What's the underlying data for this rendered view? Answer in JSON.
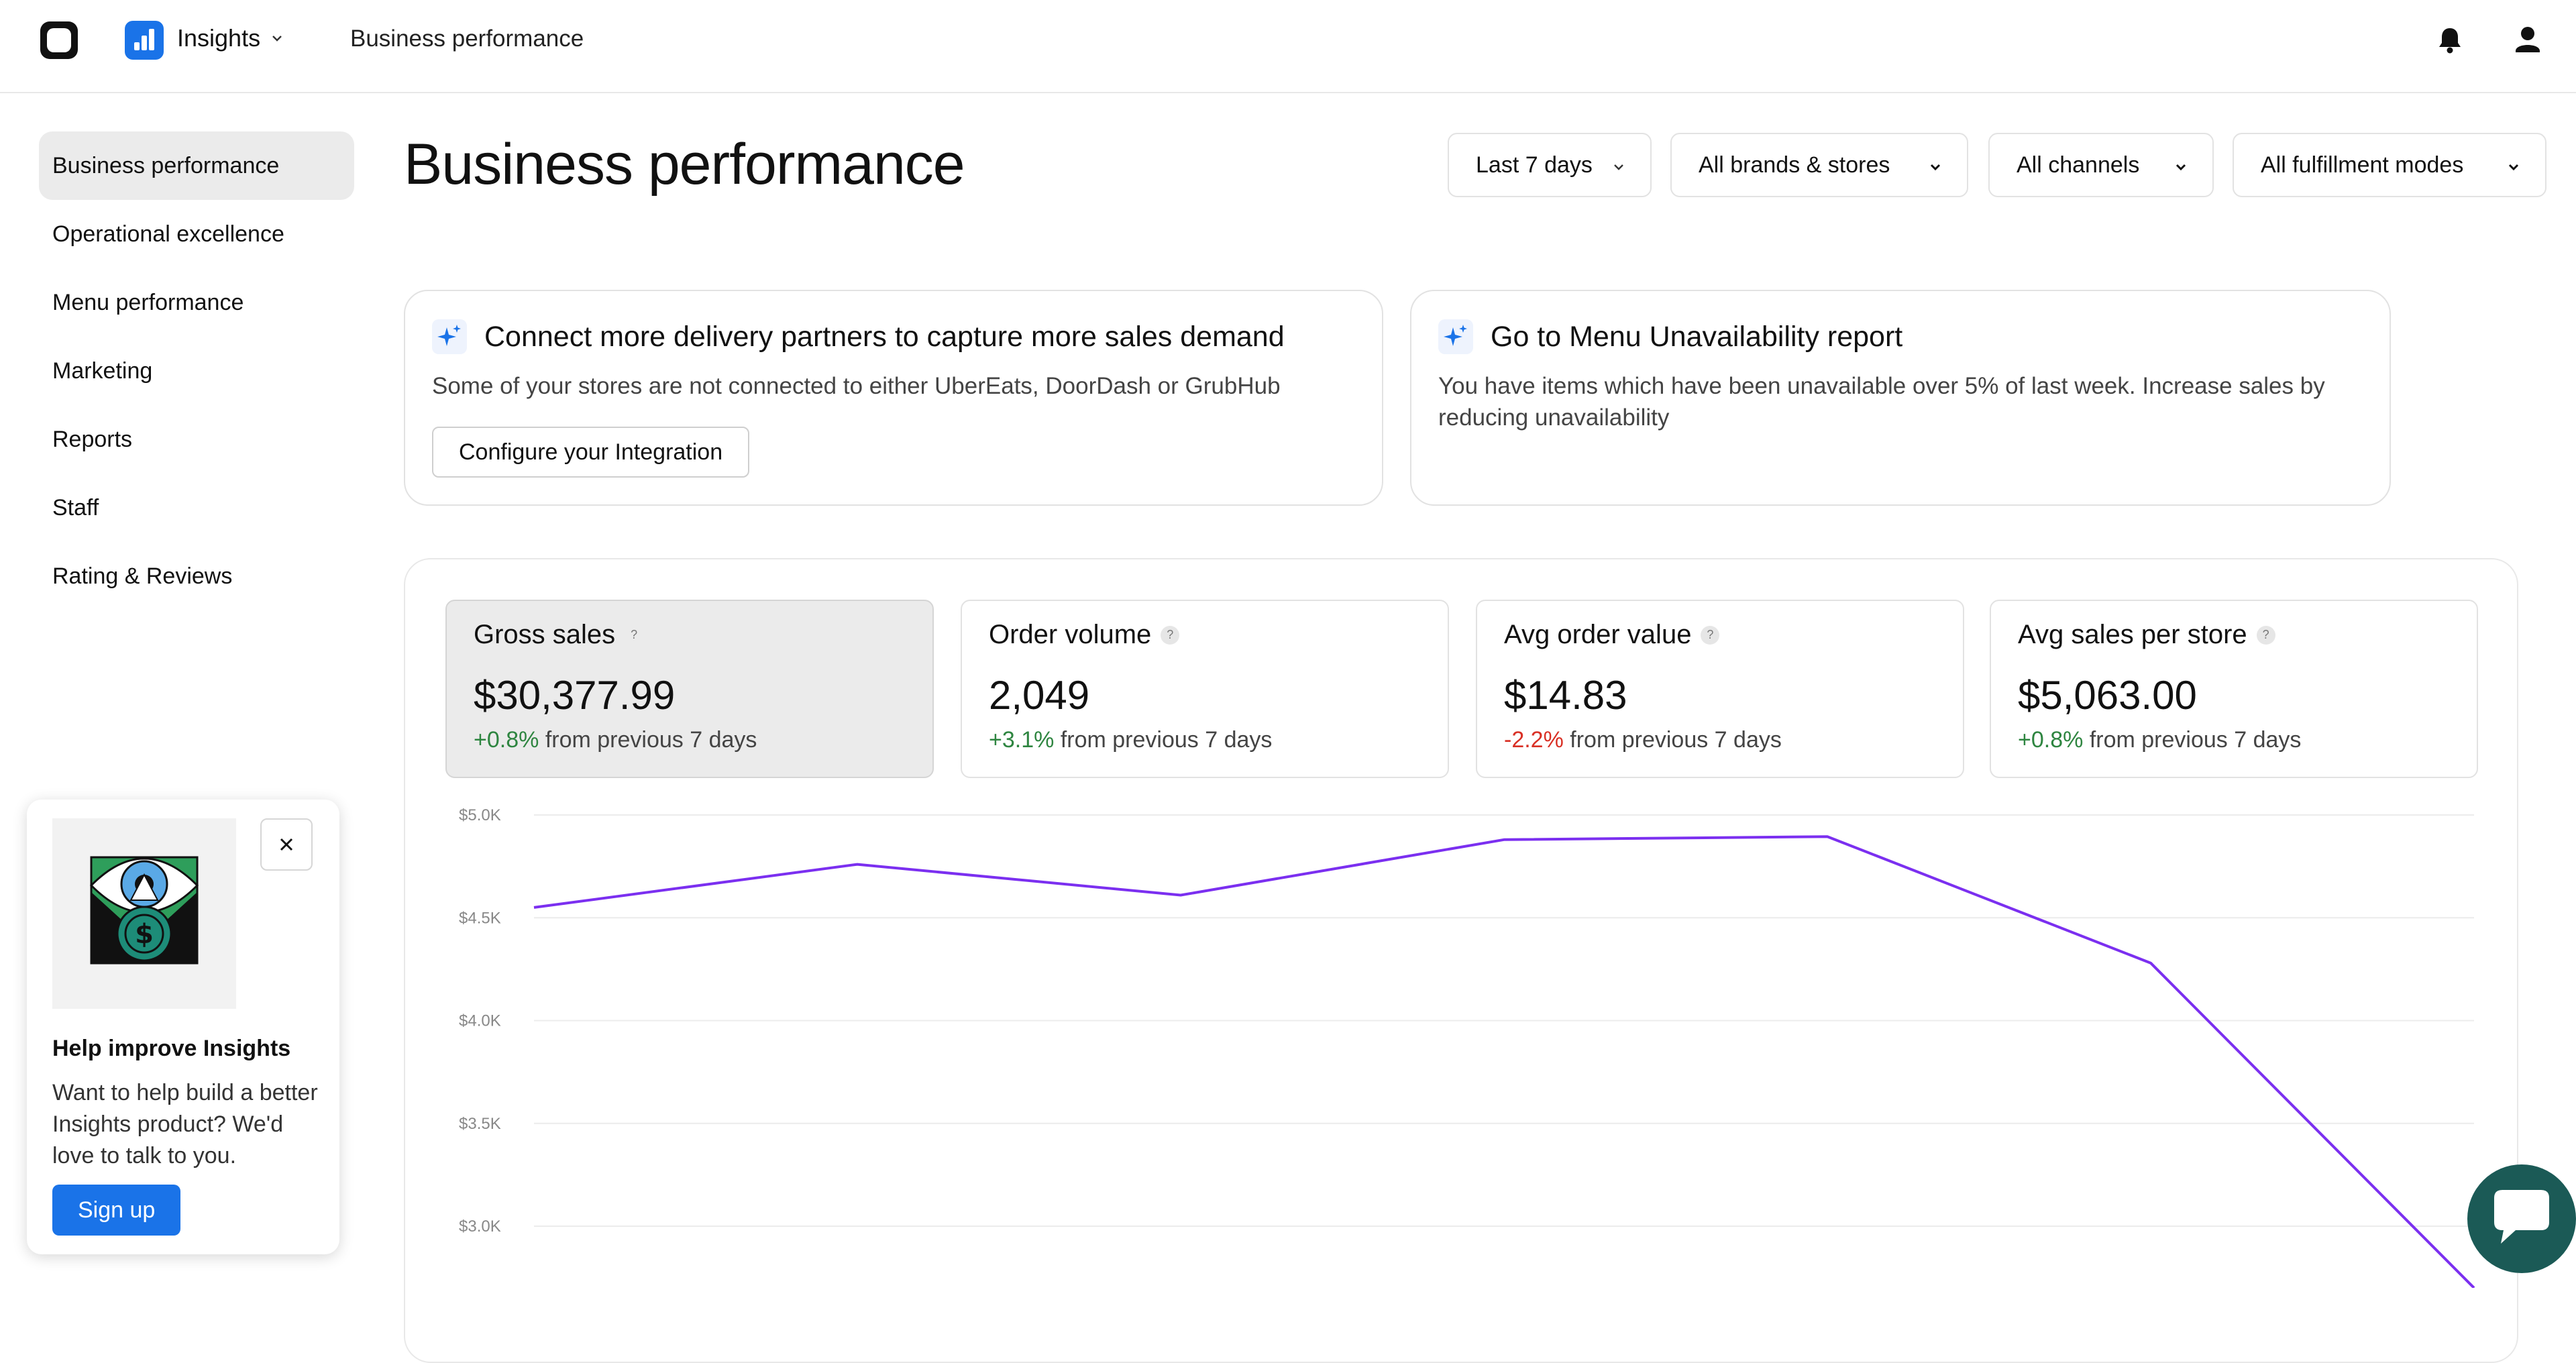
{
  "topbar": {
    "app_name": "Insights",
    "breadcrumb": "Business performance",
    "icons": [
      "logo-icon",
      "insights-app-icon",
      "chevron-down-icon",
      "bell-icon",
      "user-icon"
    ]
  },
  "sidebar": {
    "items": [
      {
        "label": "Business performance",
        "active": true
      },
      {
        "label": "Operational excellence"
      },
      {
        "label": "Menu performance"
      },
      {
        "label": "Marketing"
      },
      {
        "label": "Reports"
      },
      {
        "label": "Staff"
      },
      {
        "label": "Rating & Reviews"
      }
    ]
  },
  "header": {
    "title": "Business performance",
    "filters": [
      "Last 7 days",
      "All brands & stores",
      "All channels",
      "All fulfillment modes"
    ]
  },
  "promos": [
    {
      "title": "Connect more delivery partners to capture more sales demand",
      "desc": "Some of your stores are not connected to either UberEats, DoorDash or GrubHub",
      "button": "Configure your Integration"
    },
    {
      "title": "Go to Menu Unavailability report",
      "desc_line1": "You have items which have been unavailable over 5% of last week. Increase sales by",
      "desc_line2": "reducing unavailability"
    }
  ],
  "metrics": [
    {
      "title": "Gross sales",
      "value": "$30,377.99",
      "delta": "+0.8%",
      "delta_text": "from previous 7 days",
      "trend": "up",
      "selected": true
    },
    {
      "title": "Order volume",
      "value": "2,049",
      "delta": "+3.1%",
      "delta_text": "from previous 7 days",
      "trend": "up"
    },
    {
      "title": "Avg order value",
      "value": "$14.83",
      "delta": "-2.2%",
      "delta_text": "from previous 7 days",
      "trend": "down"
    },
    {
      "title": "Avg sales per store",
      "value": "$5,063.00",
      "delta": "+0.8%",
      "delta_text": "from previous 7 days",
      "trend": "up"
    }
  ],
  "help_glyph": "?",
  "feedback": {
    "title": "Help improve Insights",
    "text": "Want to help build a better Insights product? We'd love to talk to you.",
    "button": "Sign up"
  },
  "colors": {
    "accent": "#1a73e8",
    "line": "#7b2ff0",
    "positive": "#2e8540",
    "negative": "#d93025",
    "chat": "#1b5a56"
  },
  "chart_data": {
    "type": "line",
    "y_ticks": [
      "$5.0K",
      "$4.5K",
      "$4.0K",
      "$3.5K",
      "$3.0K"
    ],
    "ylim": [
      3000,
      5000
    ],
    "grid": true,
    "series": [
      {
        "values": [
          4550,
          4760,
          4610,
          4880,
          4895,
          4280,
          2700
        ]
      }
    ]
  }
}
